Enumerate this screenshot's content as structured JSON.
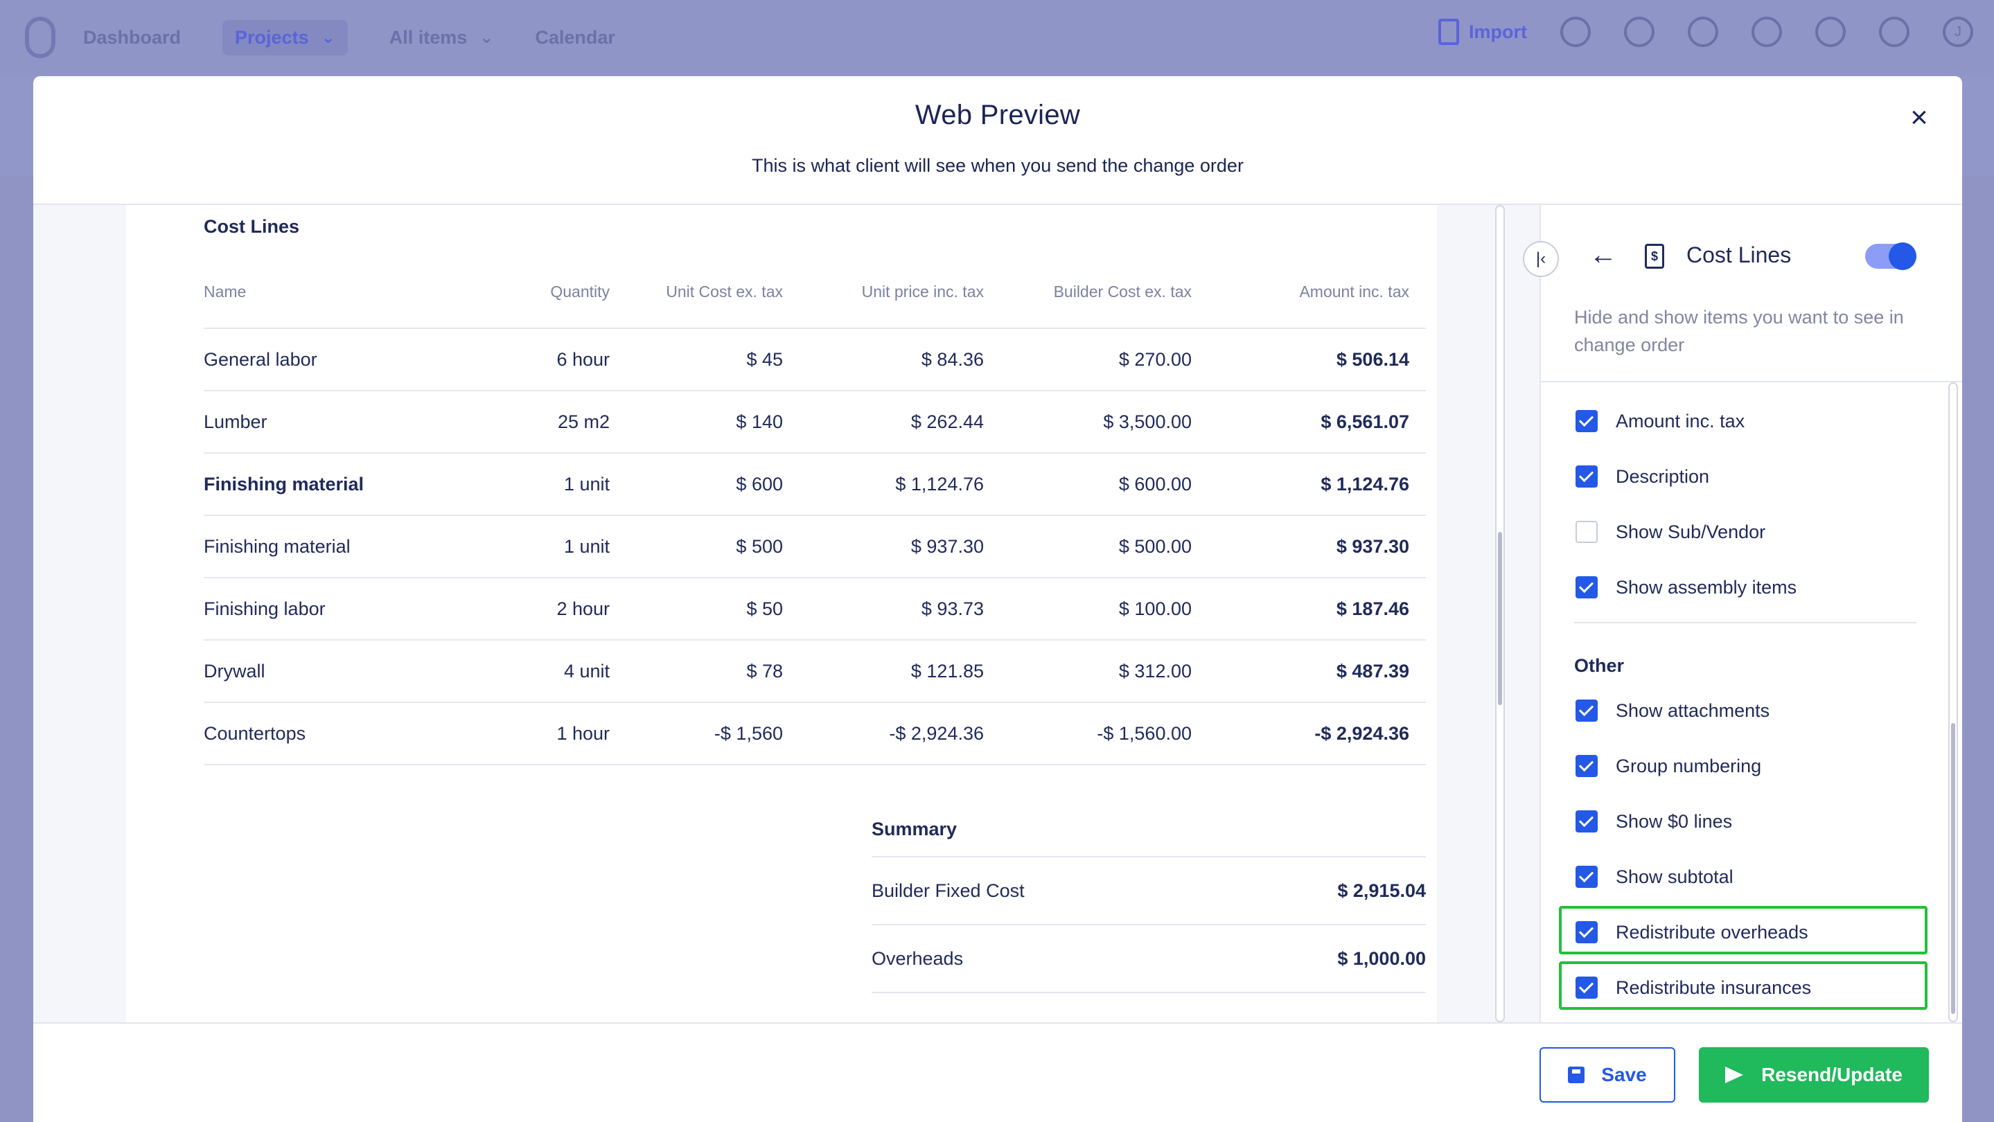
{
  "app": {
    "nav": [
      {
        "label": "Dashboard"
      },
      {
        "label": "Projects"
      },
      {
        "label": "All items"
      },
      {
        "label": "Calendar"
      }
    ],
    "import_label": "Import",
    "avatar_initial": "J"
  },
  "modal": {
    "title": "Web Preview",
    "subtitle": "This is what client will see when you send the change order",
    "close_icon": "close-icon"
  },
  "cost_lines": {
    "section_label": "Cost Lines",
    "columns": [
      "Name",
      "Quantity",
      "Unit Cost ex. tax",
      "Unit price inc. tax",
      "Builder Cost ex. tax",
      "Amount inc. tax"
    ],
    "rows": [
      {
        "name": "General labor",
        "quantity": "6 hour",
        "unit_cost": "$ 45",
        "unit_price": "$ 84.36",
        "builder_cost": "$ 270.00",
        "amount": "$ 506.14"
      },
      {
        "name": "Lumber",
        "quantity": "25 m2",
        "unit_cost": "$ 140",
        "unit_price": "$ 262.44",
        "builder_cost": "$ 3,500.00",
        "amount": "$ 6,561.07"
      },
      {
        "name": "Finishing material",
        "quantity": "1 unit",
        "unit_cost": "$ 600",
        "unit_price": "$ 1,124.76",
        "builder_cost": "$ 600.00",
        "amount": "$ 1,124.76"
      },
      {
        "name": "Finishing material",
        "quantity": "1 unit",
        "unit_cost": "$ 500",
        "unit_price": "$ 937.30",
        "builder_cost": "$ 500.00",
        "amount": "$ 937.30"
      },
      {
        "name": "Finishing labor",
        "quantity": "2 hour",
        "unit_cost": "$ 50",
        "unit_price": "$ 93.73",
        "builder_cost": "$ 100.00",
        "amount": "$ 187.46"
      },
      {
        "name": "Drywall",
        "quantity": "4 unit",
        "unit_cost": "$ 78",
        "unit_price": "$ 121.85",
        "builder_cost": "$ 312.00",
        "amount": "$ 487.39"
      },
      {
        "name": "Countertops",
        "quantity": "1 hour",
        "unit_cost": "-$ 1,560",
        "unit_price": "-$ 2,924.36",
        "builder_cost": "-$ 1,560.00",
        "amount": "-$ 2,924.36"
      }
    ]
  },
  "summary": {
    "title": "Summary",
    "rows": [
      {
        "label": "Builder Fixed Cost",
        "value": "$ 2,915.04"
      },
      {
        "label": "Overheads",
        "value": "$ 1,000.00"
      }
    ]
  },
  "side_panel": {
    "title": "Cost Lines",
    "toggle_on": true,
    "description": "Hide and show items you want to see in change order",
    "options": [
      {
        "label": "Amount inc. tax",
        "checked": true
      },
      {
        "label": "Description",
        "checked": true
      },
      {
        "label": "Show Sub/Vendor",
        "checked": false
      },
      {
        "label": "Show assembly items",
        "checked": true
      }
    ],
    "other_label": "Other",
    "other_options": [
      {
        "label": "Show attachments",
        "checked": true
      },
      {
        "label": "Group numbering",
        "checked": true
      },
      {
        "label": "Show $0 lines",
        "checked": true
      },
      {
        "label": "Show subtotal",
        "checked": true
      },
      {
        "label": "Redistribute overheads",
        "checked": true,
        "highlighted": true
      },
      {
        "label": "Redistribute insurances",
        "checked": true,
        "highlighted": true
      }
    ],
    "highlight_color": "#23bf3d"
  },
  "footer": {
    "save_label": "Save",
    "send_label": "Resend/Update"
  },
  "colors": {
    "accent": "#2458e6",
    "success": "#20b95b",
    "text": "#1f2a5a"
  }
}
